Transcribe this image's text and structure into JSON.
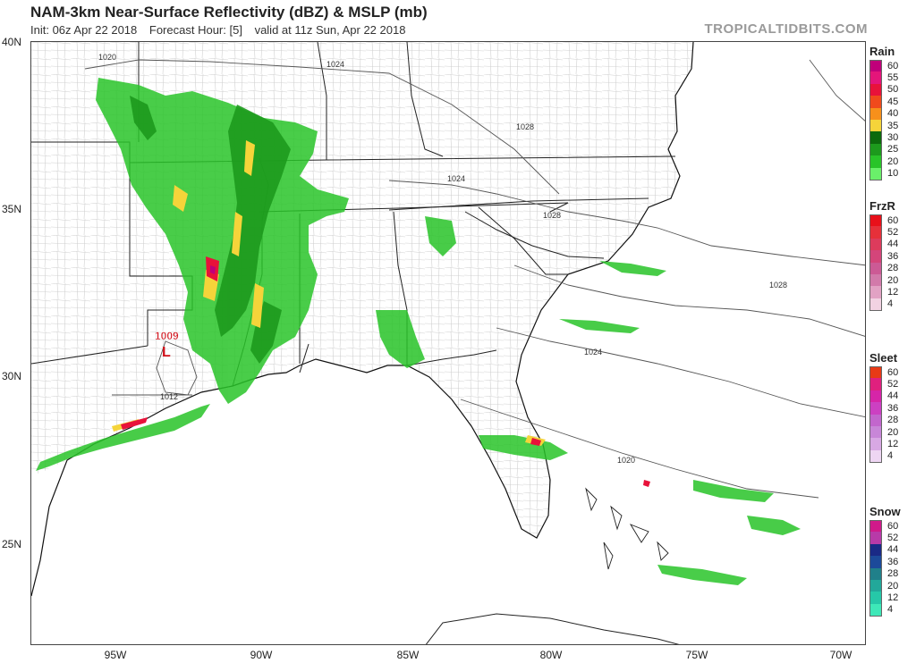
{
  "header": {
    "title": "NAM-3km Near-Surface Reflectivity (dBZ) & MSLP (mb)",
    "init": "Init: 06z Apr 22 2018",
    "forecast_hour": "Forecast Hour: [5]",
    "valid": "valid at 11z Sun, Apr 22 2018",
    "brand": "TROPICALTIDBITS.COM"
  },
  "axes": {
    "lat_labels": [
      "40N",
      "35N",
      "30N",
      "25N"
    ],
    "lon_labels": [
      "95W",
      "90W",
      "85W",
      "80W",
      "75W",
      "70W"
    ]
  },
  "isobars": {
    "labels": [
      "1020",
      "1024",
      "1028",
      "1024",
      "1028",
      "1028",
      "1024",
      "1020",
      "1012",
      "1009"
    ],
    "low_center": "L",
    "low_pressure": "1009"
  },
  "legends": [
    {
      "title": "Rain",
      "levels": [
        "60",
        "55",
        "50",
        "45",
        "40",
        "35",
        "30",
        "25",
        "20",
        "10"
      ],
      "colors": [
        "#c0007a",
        "#e4157a",
        "#e8123a",
        "#f04a1c",
        "#f7901b",
        "#f5d43a",
        "#0c6a0c",
        "#1d9a1d",
        "#29c429",
        "#6af06a"
      ]
    },
    {
      "title": "FrzR",
      "levels": [
        "60",
        "52",
        "44",
        "36",
        "28",
        "20",
        "12",
        "4"
      ],
      "colors": [
        "#e8101a",
        "#e6303a",
        "#dd3b5c",
        "#d4457a",
        "#cc5a95",
        "#d27aaa",
        "#e2a2c4",
        "#f2d2e2"
      ]
    },
    {
      "title": "Sleet",
      "levels": [
        "60",
        "52",
        "44",
        "36",
        "28",
        "20",
        "12",
        "4"
      ],
      "colors": [
        "#e83a16",
        "#e0207e",
        "#d625a8",
        "#cc40c2",
        "#c266cd",
        "#c886d8",
        "#d8a8e4",
        "#eed6f3"
      ]
    },
    {
      "title": "Snow",
      "levels": [
        "60",
        "52",
        "44",
        "36",
        "28",
        "20",
        "12",
        "4"
      ],
      "colors": [
        "#d01a8a",
        "#b83aa8",
        "#1a2a86",
        "#1c4a9a",
        "#20808a",
        "#22a89a",
        "#26c8a8",
        "#3ee8b8"
      ]
    }
  ]
}
